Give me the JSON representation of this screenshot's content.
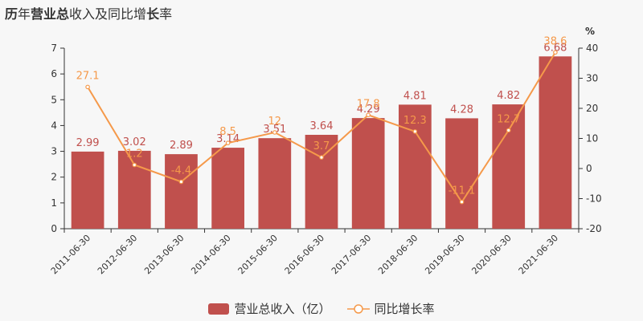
{
  "title": {
    "part1": "历",
    "part2": "年",
    "part3": "营业总",
    "part4": "收入及同比增",
    "part5": "长",
    "part6": "率"
  },
  "colors": {
    "bar": "#c0504d",
    "line": "#f5994a",
    "axis_text": "#333333",
    "bar_label": "#c0504d",
    "line_label": "#f5994a"
  },
  "chart_data": {
    "type": "bar",
    "categories": [
      "2011-06-30",
      "2012-06-30",
      "2013-06-30",
      "2014-06-30",
      "2015-06-30",
      "2016-06-30",
      "2017-06-30",
      "2018-06-30",
      "2019-06-30",
      "2020-06-30",
      "2021-06-30"
    ],
    "series": [
      {
        "name": "营业总收入（亿）",
        "type": "bar",
        "axis": "left",
        "values": [
          2.99,
          3.02,
          2.89,
          3.14,
          3.51,
          3.64,
          4.29,
          4.81,
          4.28,
          4.82,
          6.68
        ],
        "labels": [
          "2.99",
          "3.02",
          "2.89",
          "3.14",
          "3.51",
          "3.64",
          "4.29",
          "4.81",
          "4.28",
          "4.82",
          "6.68"
        ]
      },
      {
        "name": "同比增长率",
        "type": "line",
        "axis": "right",
        "values": [
          27.1,
          1.2,
          -4.4,
          8.5,
          12,
          3.7,
          17.8,
          12.3,
          -11.1,
          12.7,
          38.6
        ],
        "labels": [
          "27.1",
          "1.2",
          "-4.4",
          "8.5",
          "12",
          "3.7",
          "17.8",
          "12.3",
          "-11.1",
          "12.7",
          "38.6"
        ]
      }
    ],
    "y_left": {
      "min": 0,
      "max": 7,
      "ticks": [
        "0",
        "1",
        "2",
        "3",
        "4",
        "5",
        "6",
        "7"
      ]
    },
    "y_right": {
      "min": -20,
      "max": 40,
      "ticks": [
        "-20",
        "-10",
        "0",
        "10",
        "20",
        "30",
        "40"
      ],
      "unit": "%"
    },
    "legend": {
      "position": "bottom-center",
      "bar_label": "营业总收入（亿）",
      "line_label": "同比增长率"
    }
  }
}
